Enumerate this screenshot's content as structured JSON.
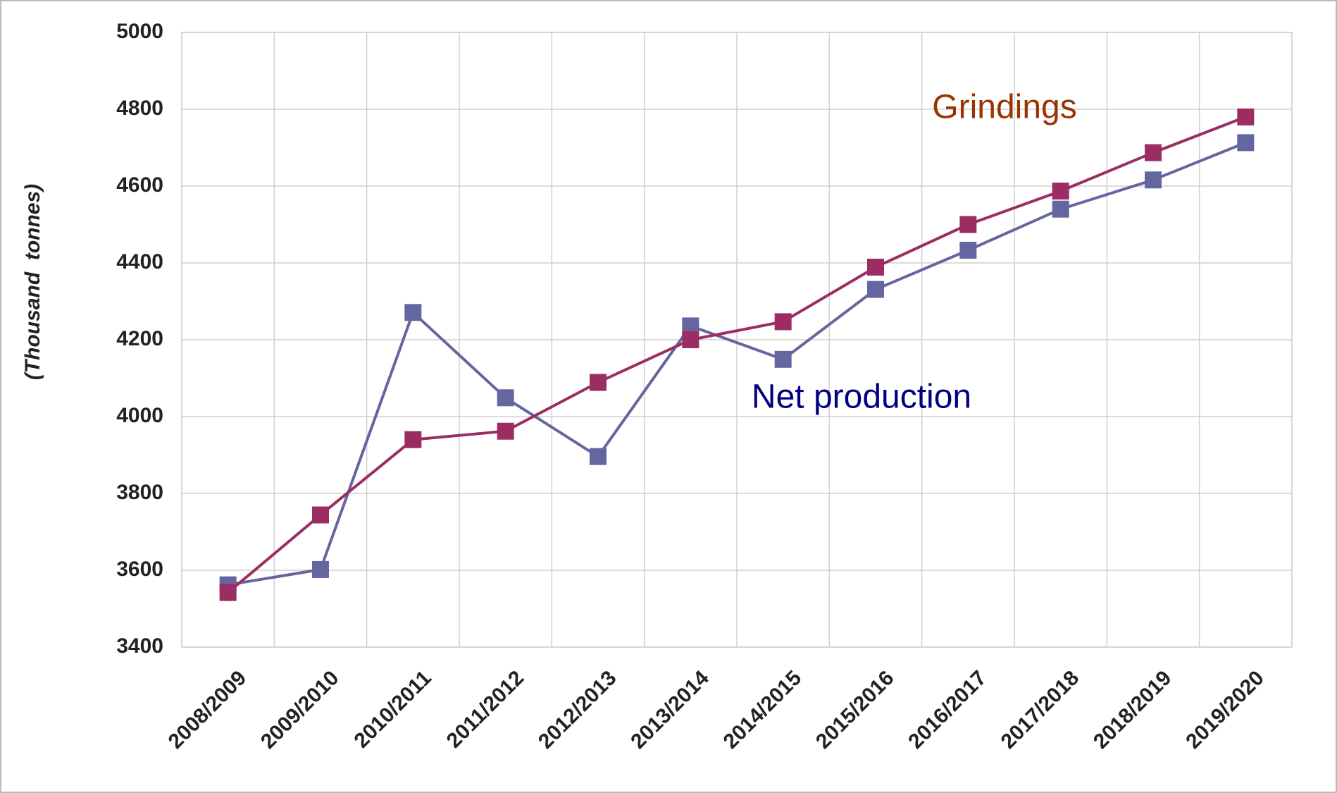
{
  "chart_data": {
    "type": "line",
    "y_label": "(Thousand  tonnes)",
    "categories": [
      "2008/2009",
      "2009/2010",
      "2010/2011",
      "2011/2012",
      "2012/2013",
      "2013/2014",
      "2014/2015",
      "2015/2016",
      "2016/2017",
      "2017/2018",
      "2018/2019",
      "2019/2020"
    ],
    "series": [
      {
        "name": "Net production",
        "color": "#6466a0",
        "label_color": "#000080",
        "values": [
          3562,
          3602,
          4271,
          4049,
          3896,
          4236,
          4149,
          4331,
          4433,
          4540,
          4616,
          4713
        ]
      },
      {
        "name": "Grindings",
        "color": "#9b2d62",
        "label_color": "#993300",
        "values": [
          3542,
          3744,
          3940,
          3962,
          4089,
          4200,
          4247,
          4389,
          4500,
          4587,
          4687,
          4780
        ]
      }
    ],
    "ylim": [
      3400,
      5000
    ],
    "yticks": [
      3400,
      3600,
      3800,
      4000,
      4200,
      4400,
      4600,
      4800,
      5000
    ],
    "grid": true
  }
}
